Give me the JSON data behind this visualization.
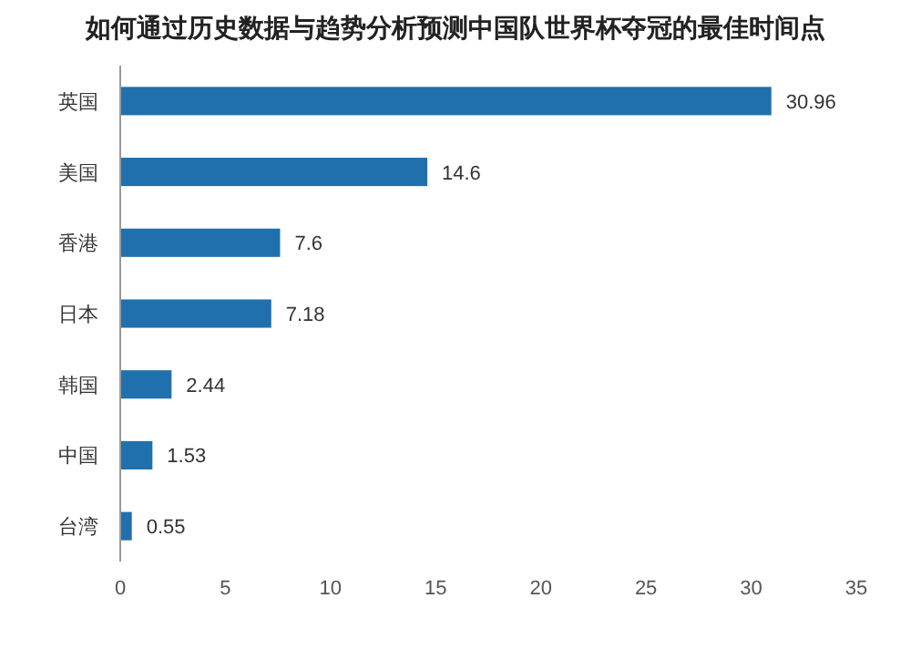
{
  "chart_data": {
    "type": "bar",
    "orientation": "horizontal",
    "title": "如何通过历史数据与趋势分析预测中国队世界杯夺冠的最佳时间点",
    "categories": [
      "英国",
      "美国",
      "香港",
      "日本",
      "韩国",
      "中国",
      "台湾"
    ],
    "values": [
      30.96,
      14.6,
      7.6,
      7.18,
      2.44,
      1.53,
      0.55
    ],
    "color": "#2070ae",
    "xlim": [
      0,
      35
    ],
    "xticks": [
      0,
      5,
      10,
      15,
      20,
      25,
      30,
      35
    ],
    "data_labels": true
  }
}
